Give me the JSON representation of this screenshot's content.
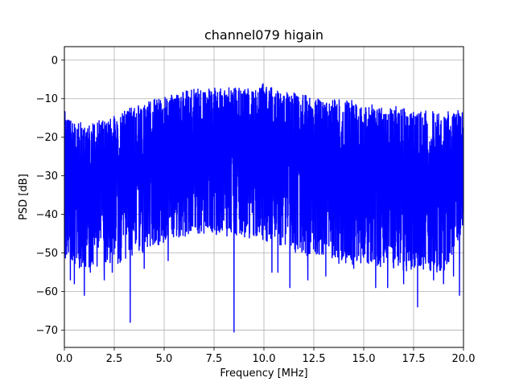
{
  "chart_data": {
    "type": "line",
    "title": "channel079 higain",
    "xlabel": "Frequency [MHz]",
    "ylabel": "PSD [dB]",
    "xlim": [
      0,
      20
    ],
    "ylim": [
      -74.5,
      3.5
    ],
    "xticks": [
      0,
      2.5,
      5,
      7.5,
      10,
      12.5,
      15,
      17.5,
      20
    ],
    "xtick_labels": [
      "0.0",
      "2.5",
      "5.0",
      "7.5",
      "10.0",
      "12.5",
      "15.0",
      "17.5",
      "20.0"
    ],
    "yticks": [
      0,
      -10,
      -20,
      -30,
      -40,
      -50,
      -60,
      -70
    ],
    "ytick_labels": [
      "0",
      "−10",
      "−20",
      "−30",
      "−40",
      "−50",
      "−60",
      "−70"
    ],
    "grid": true,
    "series": [
      {
        "color": "#0000ff",
        "description": "dense noisy PSD trace",
        "upper_envelope": {
          "x": [
            0,
            0.5,
            1,
            2,
            3,
            4,
            5,
            6,
            7,
            8,
            9,
            10,
            11,
            12,
            13,
            14,
            15,
            16,
            17,
            18,
            19,
            20
          ],
          "y": [
            -13,
            -16,
            -16,
            -15,
            -13,
            -11,
            -9,
            -8,
            -7,
            -7,
            -7,
            -6,
            -8,
            -9,
            -10,
            -10,
            -11,
            -12,
            -12,
            -13,
            -13,
            -13
          ]
        },
        "lower_envelope": {
          "x": [
            0,
            1,
            2,
            3,
            4,
            5,
            6,
            7,
            8,
            9,
            10,
            11,
            12,
            13,
            14,
            15,
            16,
            17,
            18,
            19,
            20
          ],
          "y": [
            -52,
            -55,
            -53,
            -53,
            -50,
            -48,
            -46,
            -45,
            -46,
            -46,
            -47,
            -49,
            -51,
            -52,
            -53,
            -53,
            -54,
            -55,
            -55,
            -55,
            -45
          ]
        },
        "deep_dips": [
          {
            "x": 0.3,
            "y": -57
          },
          {
            "x": 0.5,
            "y": -58
          },
          {
            "x": 1.0,
            "y": -61
          },
          {
            "x": 1.3,
            "y": -55
          },
          {
            "x": 2.0,
            "y": -57
          },
          {
            "x": 2.4,
            "y": -55
          },
          {
            "x": 3.3,
            "y": -68
          },
          {
            "x": 4.0,
            "y": -54
          },
          {
            "x": 5.2,
            "y": -52
          },
          {
            "x": 8.5,
            "y": -70.5
          },
          {
            "x": 10.4,
            "y": -55
          },
          {
            "x": 10.7,
            "y": -55
          },
          {
            "x": 11.3,
            "y": -59
          },
          {
            "x": 12.2,
            "y": -57
          },
          {
            "x": 13.1,
            "y": -56
          },
          {
            "x": 14.5,
            "y": -54
          },
          {
            "x": 15.6,
            "y": -59
          },
          {
            "x": 16.2,
            "y": -59
          },
          {
            "x": 17.0,
            "y": -58
          },
          {
            "x": 17.7,
            "y": -64
          },
          {
            "x": 18.5,
            "y": -57
          },
          {
            "x": 19.0,
            "y": -58
          },
          {
            "x": 19.5,
            "y": -56
          },
          {
            "x": 19.8,
            "y": -61
          }
        ]
      }
    ]
  }
}
